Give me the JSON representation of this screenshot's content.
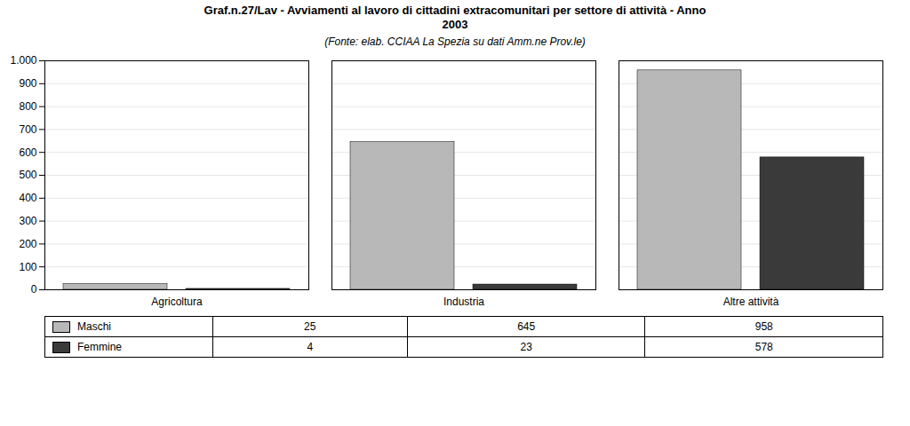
{
  "chart_data": {
    "type": "bar",
    "title": "Graf.n.27/Lav - Avviamenti al lavoro di cittadini extracomunitari per settore di attività - Anno\n2003",
    "subtitle": "(Fonte: elab. CCIAA La Spezia su dati Amm.ne Prov.le)",
    "categories": [
      "Agricoltura",
      "Industria",
      "Altre attività"
    ],
    "series": [
      {
        "name": "Maschi",
        "color": "#b8b8b8",
        "values": [
          25,
          645,
          958
        ]
      },
      {
        "name": "Femmine",
        "color": "#3a3a3a",
        "values": [
          4,
          23,
          578
        ]
      }
    ],
    "ylim": [
      0,
      1000
    ],
    "yticks": [
      0,
      100,
      200,
      300,
      400,
      500,
      600,
      700,
      800,
      900,
      {
        "value": 1000,
        "label": "1.000"
      }
    ],
    "grid": true,
    "legend": "bottom",
    "data_labels": true
  }
}
